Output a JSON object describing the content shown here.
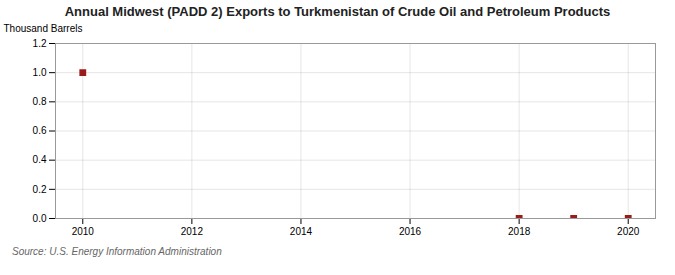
{
  "chart_data": {
    "type": "scatter",
    "title": "Annual Midwest (PADD 2) Exports to Turkmenistan of Crude Oil and Petroleum Products",
    "ylabel": "Thousand Barrels",
    "source": "Source: U.S. Energy Information Administration",
    "x": [
      2010,
      2018,
      2019,
      2020
    ],
    "values": [
      1.0,
      0.0,
      0.0,
      0.0
    ],
    "color": "#9B1B1B",
    "marker": "square",
    "xlim": [
      2009.5,
      2020.5
    ],
    "xticks": [
      2010,
      2012,
      2014,
      2016,
      2018,
      2020
    ],
    "ylim": [
      0.0,
      1.2
    ],
    "yticks": [
      {
        "value": 0.0,
        "label": "0.0"
      },
      0.2,
      0.4,
      0.6,
      0.8,
      {
        "value": 1.0,
        "label": "1.0"
      },
      1.2
    ],
    "grid": true
  }
}
